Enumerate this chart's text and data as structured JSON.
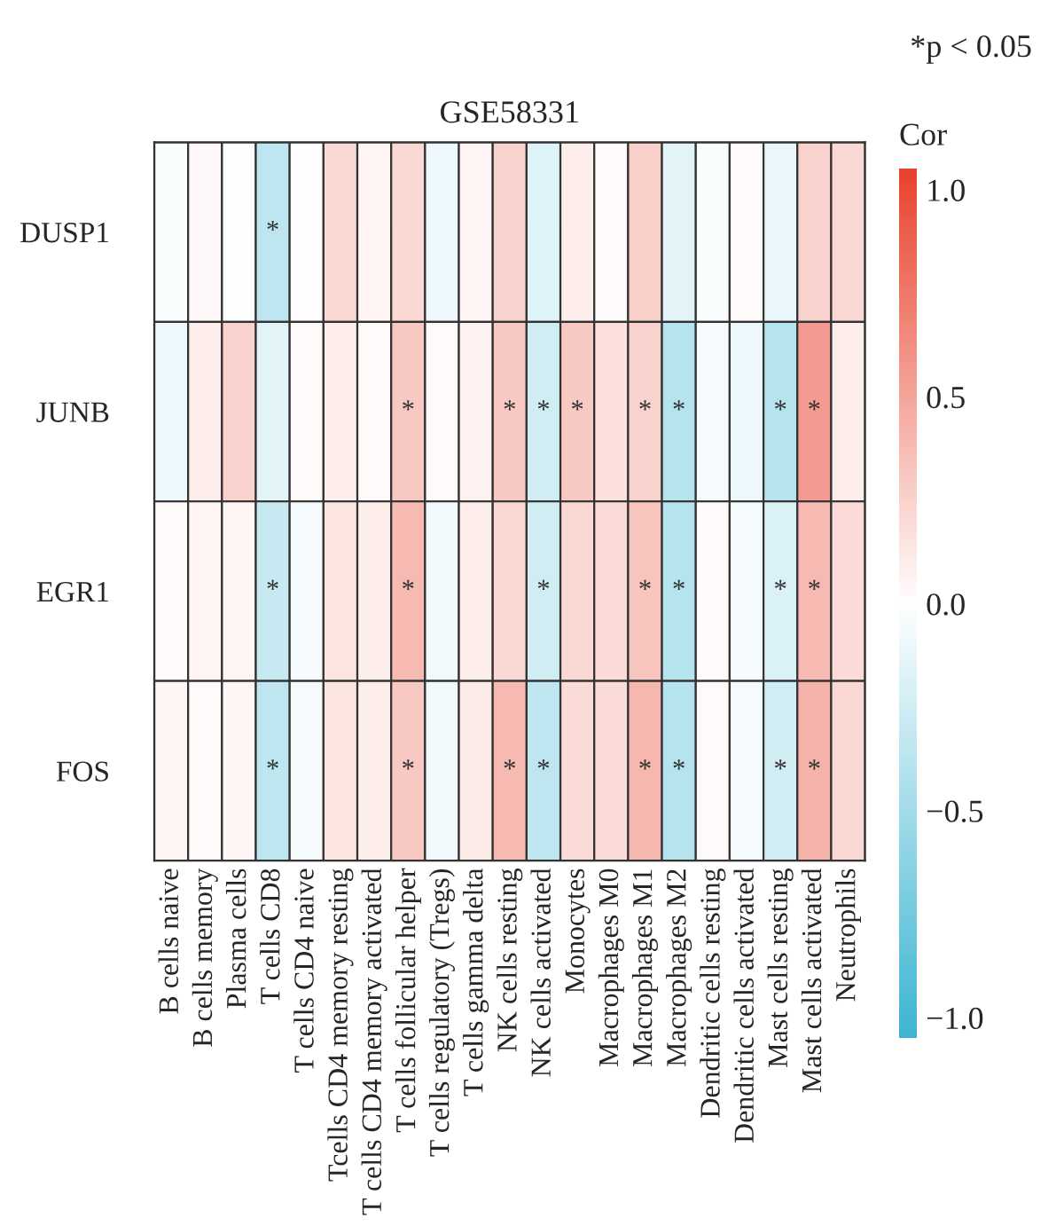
{
  "chart_data": {
    "type": "heatmap",
    "title": "GSE58331",
    "clabel": "Cor",
    "annotations": [
      "*p < 0.05"
    ],
    "categories": [
      "B cells naive",
      "B cells memory",
      "Plasma cells",
      "T cells CD8",
      "T cells CD4 naive",
      "Tcells CD4 memory resting",
      "T cells CD4 memory activated",
      "T cells follicular helper",
      "T cells regulatory (Tregs)",
      "T cells gamma delta",
      "NK cells resting",
      "NK cells activated",
      "Monocytes",
      "Macrophages M0",
      "Macrophages M1",
      "Macrophages M2",
      "Dendritic cells resting",
      "Dendritic cells activated",
      "Mast cells resting",
      "Mast cells activated",
      "Neutrophils"
    ],
    "y_categories": [
      "DUSP1",
      "JUNB",
      "EGR1",
      "FOS"
    ],
    "cells": [
      [
        -0.03,
        0.04,
        0.0,
        -0.35,
        0.01,
        0.22,
        0.05,
        0.22,
        -0.1,
        0.05,
        0.25,
        -0.18,
        0.1,
        0.02,
        0.27,
        -0.15,
        -0.03,
        0.02,
        -0.12,
        0.25,
        0.22
      ],
      [
        -0.1,
        0.1,
        0.25,
        -0.15,
        0.02,
        0.1,
        0.03,
        0.3,
        0.03,
        0.07,
        0.3,
        -0.25,
        0.3,
        0.18,
        0.25,
        -0.4,
        -0.05,
        -0.1,
        -0.4,
        0.55,
        0.1
      ],
      [
        0.03,
        0.05,
        0.05,
        -0.3,
        -0.05,
        0.15,
        0.1,
        0.38,
        -0.08,
        0.1,
        0.22,
        -0.25,
        0.22,
        0.2,
        0.32,
        -0.4,
        0.02,
        -0.05,
        -0.2,
        0.38,
        0.2
      ],
      [
        0.05,
        0.03,
        0.05,
        -0.35,
        -0.05,
        0.15,
        0.1,
        0.3,
        -0.08,
        0.12,
        0.38,
        -0.35,
        0.2,
        0.2,
        0.4,
        -0.4,
        0.03,
        -0.05,
        -0.25,
        0.42,
        0.22
      ]
    ],
    "cell_labels": [
      [
        null,
        null,
        null,
        "*",
        null,
        null,
        null,
        null,
        null,
        null,
        null,
        null,
        null,
        null,
        null,
        null,
        null,
        null,
        null,
        null,
        null
      ],
      [
        null,
        null,
        null,
        null,
        null,
        null,
        null,
        "*",
        null,
        null,
        "*",
        "*",
        "*",
        null,
        "*",
        "*",
        null,
        null,
        "*",
        "*",
        null
      ],
      [
        null,
        null,
        null,
        "*",
        null,
        null,
        null,
        "*",
        null,
        null,
        null,
        "*",
        null,
        null,
        "*",
        "*",
        null,
        null,
        "*",
        "*",
        null
      ],
      [
        null,
        null,
        null,
        "*",
        null,
        null,
        null,
        "*",
        null,
        null,
        "*",
        "*",
        null,
        null,
        "*",
        "*",
        null,
        null,
        "*",
        "*",
        null
      ]
    ],
    "clim": [
      -1.05,
      1.05
    ],
    "cticks": [
      {
        "value": 1.0,
        "label": "1.0"
      },
      {
        "value": 0.5,
        "label": "0.5"
      },
      {
        "value": 0.0,
        "label": "0.0"
      },
      {
        "value": -0.5,
        "label": "−0.5"
      },
      {
        "value": -1.0,
        "label": "−1.0"
      }
    ]
  }
}
